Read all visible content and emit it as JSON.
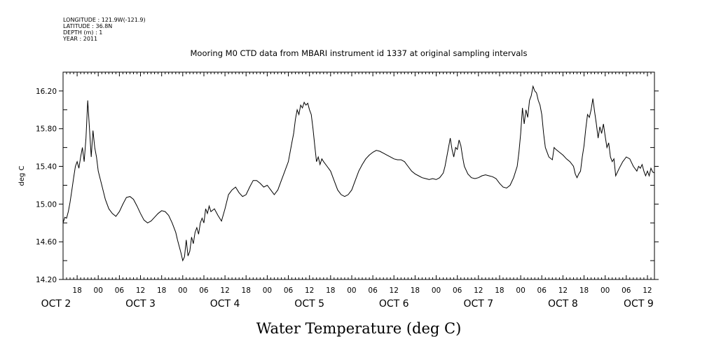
{
  "header": {
    "meta_lines": [
      "LONGITUDE : 121.9W(-121.9)",
      "LATITUDE : 36.8N",
      "DEPTH (m) : 1",
      "YEAR : 2011"
    ]
  },
  "chart_data": {
    "type": "line",
    "title": "Mooring M0 CTD data from MBARI instrument id 1337 at original sampling intervals",
    "xlabel": "Water Temperature (deg C)",
    "ylabel": "deg C",
    "ylim": [
      14.2,
      16.4
    ],
    "y_ticks": [
      14.2,
      14.6,
      15.0,
      15.4,
      15.8,
      16.2
    ],
    "y_tick_labels": [
      "14.20",
      "14.60",
      "15.00",
      "15.40",
      "15.80",
      "16.20"
    ],
    "x_unit": "hours since 2011-10-02 00:00",
    "xlim": [
      14,
      182
    ],
    "hour_ticks": [
      {
        "h": 18,
        "label": "18"
      },
      {
        "h": 24,
        "label": "00"
      },
      {
        "h": 30,
        "label": "06"
      },
      {
        "h": 36,
        "label": "12"
      },
      {
        "h": 42,
        "label": "18"
      },
      {
        "h": 48,
        "label": "00"
      },
      {
        "h": 54,
        "label": "06"
      },
      {
        "h": 60,
        "label": "12"
      },
      {
        "h": 66,
        "label": "18"
      },
      {
        "h": 72,
        "label": "00"
      },
      {
        "h": 78,
        "label": "06"
      },
      {
        "h": 84,
        "label": "12"
      },
      {
        "h": 90,
        "label": "18"
      },
      {
        "h": 96,
        "label": "00"
      },
      {
        "h": 102,
        "label": "06"
      },
      {
        "h": 108,
        "label": "12"
      },
      {
        "h": 114,
        "label": "18"
      },
      {
        "h": 120,
        "label": "00"
      },
      {
        "h": 126,
        "label": "06"
      },
      {
        "h": 132,
        "label": "12"
      },
      {
        "h": 138,
        "label": "18"
      },
      {
        "h": 144,
        "label": "00"
      },
      {
        "h": 150,
        "label": "06"
      },
      {
        "h": 156,
        "label": "12"
      },
      {
        "h": 162,
        "label": "18"
      },
      {
        "h": 168,
        "label": "00"
      },
      {
        "h": 174,
        "label": "06"
      },
      {
        "h": 180,
        "label": "12"
      }
    ],
    "day_labels": [
      {
        "h": 12,
        "label": "OCT  2"
      },
      {
        "h": 36,
        "label": "OCT  3"
      },
      {
        "h": 60,
        "label": "OCT  4"
      },
      {
        "h": 84,
        "label": "OCT  5"
      },
      {
        "h": 108,
        "label": "OCT  6"
      },
      {
        "h": 132,
        "label": "OCT  7"
      },
      {
        "h": 156,
        "label": "OCT  8"
      },
      {
        "h": 177.5,
        "label": "OCT  9"
      }
    ],
    "series": [
      {
        "color": "#000000",
        "points": [
          [
            14.0,
            14.8
          ],
          [
            14.5,
            14.86
          ],
          [
            15.0,
            14.85
          ],
          [
            15.5,
            14.92
          ],
          [
            16.0,
            15.02
          ],
          [
            16.5,
            15.15
          ],
          [
            17.0,
            15.28
          ],
          [
            17.5,
            15.4
          ],
          [
            18.0,
            15.45
          ],
          [
            18.5,
            15.38
          ],
          [
            19.0,
            15.5
          ],
          [
            19.5,
            15.6
          ],
          [
            20.0,
            15.45
          ],
          [
            20.5,
            15.7
          ],
          [
            21.0,
            16.1
          ],
          [
            21.5,
            15.8
          ],
          [
            22.0,
            15.5
          ],
          [
            22.5,
            15.78
          ],
          [
            23.0,
            15.6
          ],
          [
            23.5,
            15.5
          ],
          [
            24.0,
            15.35
          ],
          [
            25.0,
            15.2
          ],
          [
            26.0,
            15.05
          ],
          [
            27.0,
            14.95
          ],
          [
            28.0,
            14.9
          ],
          [
            29.0,
            14.87
          ],
          [
            30.0,
            14.92
          ],
          [
            31.0,
            15.0
          ],
          [
            32.0,
            15.07
          ],
          [
            33.0,
            15.08
          ],
          [
            34.0,
            15.05
          ],
          [
            35.0,
            14.98
          ],
          [
            36.0,
            14.9
          ],
          [
            37.0,
            14.83
          ],
          [
            38.0,
            14.8
          ],
          [
            39.0,
            14.82
          ],
          [
            40.0,
            14.86
          ],
          [
            41.0,
            14.9
          ],
          [
            42.0,
            14.93
          ],
          [
            43.0,
            14.92
          ],
          [
            44.0,
            14.88
          ],
          [
            45.0,
            14.8
          ],
          [
            46.0,
            14.7
          ],
          [
            46.5,
            14.62
          ],
          [
            47.0,
            14.55
          ],
          [
            47.5,
            14.48
          ],
          [
            48.0,
            14.4
          ],
          [
            48.5,
            14.44
          ],
          [
            49.0,
            14.62
          ],
          [
            49.5,
            14.45
          ],
          [
            50.0,
            14.5
          ],
          [
            50.5,
            14.65
          ],
          [
            51.0,
            14.58
          ],
          [
            51.5,
            14.7
          ],
          [
            52.0,
            14.75
          ],
          [
            52.5,
            14.68
          ],
          [
            53.0,
            14.8
          ],
          [
            53.5,
            14.85
          ],
          [
            54.0,
            14.8
          ],
          [
            54.5,
            14.95
          ],
          [
            55.0,
            14.9
          ],
          [
            55.5,
            14.98
          ],
          [
            56.0,
            14.92
          ],
          [
            57.0,
            14.95
          ],
          [
            58.0,
            14.88
          ],
          [
            59.0,
            14.82
          ],
          [
            60.0,
            14.95
          ],
          [
            61.0,
            15.1
          ],
          [
            62.0,
            15.15
          ],
          [
            63.0,
            15.18
          ],
          [
            64.0,
            15.12
          ],
          [
            65.0,
            15.08
          ],
          [
            66.0,
            15.1
          ],
          [
            67.0,
            15.18
          ],
          [
            68.0,
            15.25
          ],
          [
            69.0,
            15.25
          ],
          [
            70.0,
            15.22
          ],
          [
            71.0,
            15.18
          ],
          [
            72.0,
            15.2
          ],
          [
            73.0,
            15.15
          ],
          [
            74.0,
            15.1
          ],
          [
            75.0,
            15.15
          ],
          [
            76.0,
            15.25
          ],
          [
            77.0,
            15.35
          ],
          [
            78.0,
            15.45
          ],
          [
            78.5,
            15.55
          ],
          [
            79.0,
            15.65
          ],
          [
            79.5,
            15.75
          ],
          [
            80.0,
            15.9
          ],
          [
            80.5,
            16.0
          ],
          [
            81.0,
            15.95
          ],
          [
            81.5,
            16.05
          ],
          [
            82.0,
            16.02
          ],
          [
            82.5,
            16.08
          ],
          [
            83.0,
            16.05
          ],
          [
            83.5,
            16.07
          ],
          [
            84.0,
            16.0
          ],
          [
            84.5,
            15.95
          ],
          [
            85.0,
            15.8
          ],
          [
            85.5,
            15.62
          ],
          [
            86.0,
            15.45
          ],
          [
            86.5,
            15.5
          ],
          [
            87.0,
            15.42
          ],
          [
            87.5,
            15.48
          ],
          [
            88.0,
            15.45
          ],
          [
            89.0,
            15.4
          ],
          [
            90.0,
            15.35
          ],
          [
            91.0,
            15.25
          ],
          [
            92.0,
            15.15
          ],
          [
            93.0,
            15.1
          ],
          [
            94.0,
            15.08
          ],
          [
            95.0,
            15.1
          ],
          [
            96.0,
            15.15
          ],
          [
            97.0,
            15.25
          ],
          [
            98.0,
            15.35
          ],
          [
            99.0,
            15.42
          ],
          [
            100.0,
            15.48
          ],
          [
            101.0,
            15.52
          ],
          [
            102.0,
            15.55
          ],
          [
            103.0,
            15.57
          ],
          [
            104.0,
            15.56
          ],
          [
            105.0,
            15.54
          ],
          [
            106.0,
            15.52
          ],
          [
            107.0,
            15.5
          ],
          [
            108.0,
            15.48
          ],
          [
            109.0,
            15.47
          ],
          [
            110.0,
            15.47
          ],
          [
            111.0,
            15.45
          ],
          [
            112.0,
            15.4
          ],
          [
            113.0,
            15.35
          ],
          [
            114.0,
            15.32
          ],
          [
            115.0,
            15.3
          ],
          [
            116.0,
            15.28
          ],
          [
            117.0,
            15.27
          ],
          [
            118.0,
            15.26
          ],
          [
            119.0,
            15.27
          ],
          [
            120.0,
            15.26
          ],
          [
            121.0,
            15.28
          ],
          [
            122.0,
            15.33
          ],
          [
            122.5,
            15.4
          ],
          [
            123.0,
            15.5
          ],
          [
            123.5,
            15.6
          ],
          [
            124.0,
            15.7
          ],
          [
            124.5,
            15.58
          ],
          [
            125.0,
            15.5
          ],
          [
            125.5,
            15.6
          ],
          [
            126.0,
            15.58
          ],
          [
            126.5,
            15.68
          ],
          [
            127.0,
            15.62
          ],
          [
            127.5,
            15.5
          ],
          [
            128.0,
            15.4
          ],
          [
            129.0,
            15.32
          ],
          [
            130.0,
            15.28
          ],
          [
            131.0,
            15.27
          ],
          [
            132.0,
            15.28
          ],
          [
            133.0,
            15.3
          ],
          [
            134.0,
            15.31
          ],
          [
            135.0,
            15.3
          ],
          [
            136.0,
            15.29
          ],
          [
            137.0,
            15.27
          ],
          [
            138.0,
            15.22
          ],
          [
            139.0,
            15.18
          ],
          [
            140.0,
            15.17
          ],
          [
            141.0,
            15.2
          ],
          [
            142.0,
            15.28
          ],
          [
            143.0,
            15.4
          ],
          [
            143.5,
            15.55
          ],
          [
            144.0,
            15.75
          ],
          [
            144.5,
            16.02
          ],
          [
            145.0,
            15.85
          ],
          [
            145.5,
            16.0
          ],
          [
            146.0,
            15.92
          ],
          [
            146.5,
            16.1
          ],
          [
            147.0,
            16.15
          ],
          [
            147.5,
            16.25
          ],
          [
            148.0,
            16.2
          ],
          [
            148.5,
            16.18
          ],
          [
            149.0,
            16.1
          ],
          [
            149.5,
            16.05
          ],
          [
            150.0,
            15.95
          ],
          [
            150.5,
            15.75
          ],
          [
            151.0,
            15.6
          ],
          [
            152.0,
            15.5
          ],
          [
            153.0,
            15.47
          ],
          [
            153.5,
            15.6
          ],
          [
            154.0,
            15.58
          ],
          [
            155.0,
            15.55
          ],
          [
            156.0,
            15.52
          ],
          [
            157.0,
            15.48
          ],
          [
            158.0,
            15.45
          ],
          [
            159.0,
            15.4
          ],
          [
            159.5,
            15.32
          ],
          [
            160.0,
            15.28
          ],
          [
            160.5,
            15.32
          ],
          [
            161.0,
            15.35
          ],
          [
            161.5,
            15.5
          ],
          [
            162.0,
            15.62
          ],
          [
            162.5,
            15.8
          ],
          [
            163.0,
            15.95
          ],
          [
            163.5,
            15.92
          ],
          [
            164.0,
            16.0
          ],
          [
            164.5,
            16.12
          ],
          [
            165.0,
            15.98
          ],
          [
            165.5,
            15.85
          ],
          [
            166.0,
            15.7
          ],
          [
            166.5,
            15.82
          ],
          [
            167.0,
            15.75
          ],
          [
            167.5,
            15.85
          ],
          [
            168.0,
            15.72
          ],
          [
            168.5,
            15.6
          ],
          [
            169.0,
            15.65
          ],
          [
            169.5,
            15.5
          ],
          [
            170.0,
            15.45
          ],
          [
            170.5,
            15.48
          ],
          [
            171.0,
            15.3
          ],
          [
            172.0,
            15.38
          ],
          [
            173.0,
            15.45
          ],
          [
            174.0,
            15.5
          ],
          [
            175.0,
            15.48
          ],
          [
            176.0,
            15.4
          ],
          [
            177.0,
            15.35
          ],
          [
            177.5,
            15.4
          ],
          [
            178.0,
            15.38
          ],
          [
            178.5,
            15.42
          ],
          [
            179.0,
            15.35
          ],
          [
            179.5,
            15.3
          ],
          [
            180.0,
            15.35
          ],
          [
            180.5,
            15.3
          ],
          [
            181.0,
            15.38
          ],
          [
            181.5,
            15.34
          ],
          [
            182.0,
            15.33
          ]
        ]
      }
    ]
  }
}
